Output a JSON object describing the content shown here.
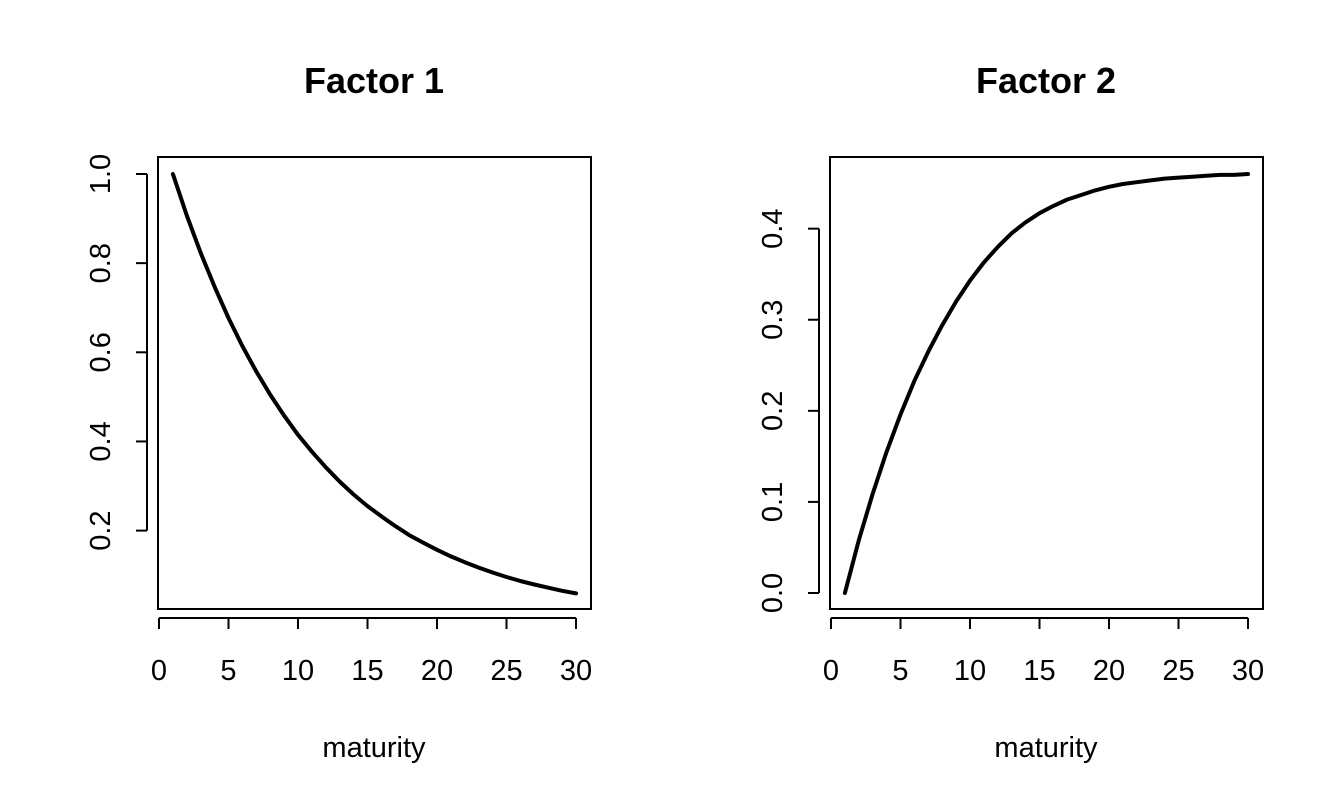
{
  "chart_data": [
    {
      "type": "line",
      "title": "Factor 1",
      "xlabel": "maturity",
      "ylabel": "",
      "xlim": [
        0,
        30
      ],
      "ylim": [
        0.06,
        1.0
      ],
      "xticks": [
        0,
        5,
        10,
        15,
        20,
        25,
        30
      ],
      "xtick_labels": [
        "0",
        "5",
        "10",
        "15",
        "20",
        "25",
        "30"
      ],
      "yticks": [
        0.2,
        0.4,
        0.6,
        0.8,
        1.0
      ],
      "ytick_labels": [
        "0.2",
        "0.4",
        "0.6",
        "0.8",
        "1.0"
      ],
      "grid": false,
      "line_color": "#000000",
      "x": [
        1,
        2,
        3,
        4,
        5,
        6,
        7,
        8,
        9,
        10,
        11,
        12,
        13,
        14,
        15,
        16,
        17,
        18,
        19,
        20,
        21,
        22,
        23,
        24,
        25,
        26,
        27,
        28,
        29,
        30
      ],
      "y": [
        1.0,
        0.907,
        0.823,
        0.747,
        0.677,
        0.614,
        0.557,
        0.505,
        0.458,
        0.415,
        0.377,
        0.342,
        0.31,
        0.281,
        0.255,
        0.232,
        0.21,
        0.19,
        0.173,
        0.157,
        0.142,
        0.129,
        0.117,
        0.106,
        0.096,
        0.087,
        0.079,
        0.072,
        0.065,
        0.059
      ]
    },
    {
      "type": "line",
      "title": "Factor 2",
      "xlabel": "maturity",
      "ylabel": "",
      "xlim": [
        0,
        30
      ],
      "ylim": [
        0.0,
        0.46
      ],
      "xticks": [
        0,
        5,
        10,
        15,
        20,
        25,
        30
      ],
      "xtick_labels": [
        "0",
        "5",
        "10",
        "15",
        "20",
        "25",
        "30"
      ],
      "yticks": [
        0.0,
        0.1,
        0.2,
        0.3,
        0.4
      ],
      "ytick_labels": [
        "0.0",
        "0.1",
        "0.2",
        "0.3",
        "0.4"
      ],
      "grid": false,
      "line_color": "#000000",
      "x": [
        1,
        2,
        3,
        4,
        5,
        6,
        7,
        8,
        9,
        10,
        11,
        12,
        13,
        14,
        15,
        16,
        17,
        18,
        19,
        20,
        21,
        22,
        23,
        24,
        25,
        26,
        27,
        28,
        29,
        30
      ],
      "y": [
        0.0,
        0.058,
        0.109,
        0.155,
        0.196,
        0.233,
        0.265,
        0.294,
        0.32,
        0.343,
        0.363,
        0.38,
        0.395,
        0.407,
        0.417,
        0.425,
        0.432,
        0.437,
        0.442,
        0.446,
        0.449,
        0.451,
        0.453,
        0.455,
        0.456,
        0.457,
        0.458,
        0.459,
        0.459,
        0.46
      ]
    }
  ]
}
